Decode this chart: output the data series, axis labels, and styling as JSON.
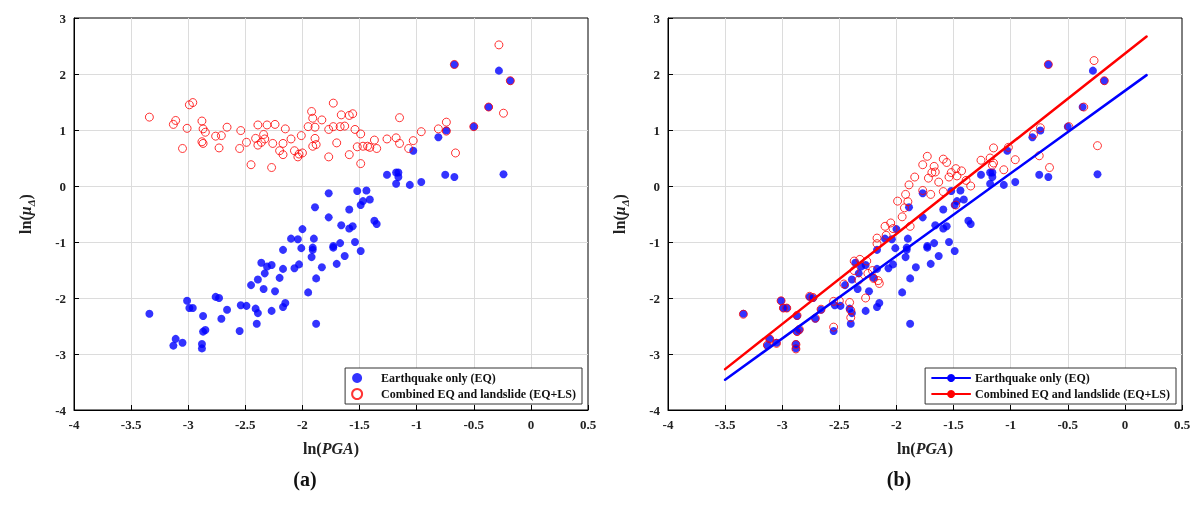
{
  "chart_data": [
    {
      "type": "scatter",
      "title": "(a)",
      "xlabel": "ln(PGA)",
      "ylabel": "ln(μ$_{Δ}$)",
      "xlim": [
        -4,
        0.5
      ],
      "xticks": [
        -4,
        -3.5,
        -3,
        -2.5,
        -2,
        -1.5,
        -1,
        -0.5,
        0,
        0.5
      ],
      "ylim": [
        -4,
        3
      ],
      "yticks": [
        -4,
        -3,
        -2,
        -1,
        0,
        1,
        2,
        3
      ],
      "grid": true,
      "legend": "bottom right",
      "series": [
        {
          "name": "Earthquake only (EQ)",
          "color": "#0000ff",
          "marker": "circle",
          "x": [
            -3.34,
            -3.13,
            -3.11,
            -3.05,
            -3.01,
            -2.99,
            -2.96,
            -2.87,
            -2.87,
            -2.85,
            -2.88,
            -2.88,
            -2.76,
            -2.73,
            -2.71,
            -2.66,
            -2.55,
            -2.54,
            -2.49,
            -2.45,
            -2.41,
            -2.39,
            -2.4,
            -2.39,
            -2.36,
            -2.34,
            -2.33,
            -2.31,
            -2.27,
            -2.27,
            -2.24,
            -2.2,
            -2.17,
            -2.17,
            -2.17,
            -2.15,
            -2.1,
            -2.07,
            -2.04,
            -2.03,
            -2.01,
            -2.0,
            -1.95,
            -1.92,
            -1.91,
            -1.91,
            -1.9,
            -1.89,
            -1.88,
            -1.88,
            -1.83,
            -1.77,
            -1.77,
            -1.73,
            -1.73,
            -1.7,
            -1.67,
            -1.66,
            -1.63,
            -1.59,
            -1.59,
            -1.56,
            -1.54,
            -1.52,
            -1.49,
            -1.49,
            -1.47,
            -1.44,
            -1.41,
            -1.37,
            -1.35,
            -1.26,
            -1.18,
            -1.16,
            -1.16,
            -1.18,
            -1.06,
            -0.96,
            -1.03,
            -0.81,
            -0.74,
            -0.75,
            -0.67,
            -0.67,
            -0.5,
            -0.37,
            -0.28,
            -0.18,
            -0.24
          ],
          "values": [
            -2.28,
            -2.85,
            -2.73,
            -2.8,
            -2.05,
            -2.18,
            -2.18,
            -2.32,
            -2.6,
            -2.57,
            -2.82,
            -2.9,
            -1.98,
            -2.0,
            -2.37,
            -2.21,
            -2.59,
            -2.13,
            -2.14,
            -1.77,
            -2.19,
            -2.27,
            -2.46,
            -1.67,
            -1.37,
            -1.84,
            -1.56,
            -1.44,
            -1.41,
            -2.23,
            -1.88,
            -1.64,
            -1.14,
            -1.48,
            -2.16,
            -2.09,
            -0.94,
            -1.47,
            -0.95,
            -1.4,
            -1.11,
            -0.77,
            -1.9,
            -1.27,
            -1.14,
            -1.1,
            -0.94,
            -0.38,
            -1.65,
            -2.46,
            -1.45,
            -0.13,
            -0.56,
            -1.07,
            -1.1,
            -1.39,
            -1.02,
            -0.7,
            -1.25,
            -0.42,
            -0.76,
            -0.72,
            -1.0,
            -0.09,
            -0.34,
            -1.16,
            -0.27,
            -0.08,
            -0.24,
            -0.62,
            -0.68,
            0.2,
            0.24,
            0.24,
            0.16,
            0.04,
            0.02,
            0.07,
            0.63,
            0.87,
            0.99,
            0.2,
            0.16,
            2.17,
            1.06,
            1.41,
            2.06,
            1.88,
            0.21
          ]
        },
        {
          "name": "Combined EQ and landslide (EQ+LS)",
          "color": "#ff0000",
          "marker": "circle",
          "x": [
            -3.34,
            -3.13,
            -3.11,
            -3.05,
            -3.01,
            -2.99,
            -2.96,
            -2.88,
            -2.87,
            -2.85,
            -2.88,
            -2.87,
            -2.76,
            -2.73,
            -2.71,
            -2.66,
            -2.55,
            -2.54,
            -2.49,
            -2.45,
            -2.39,
            -2.41,
            -2.39,
            -2.36,
            -2.34,
            -2.33,
            -2.31,
            -2.27,
            -2.26,
            -2.24,
            -2.2,
            -2.17,
            -2.17,
            -2.15,
            -2.1,
            -2.07,
            -2.04,
            -2.03,
            -2.01,
            -2.0,
            -1.95,
            -1.92,
            -1.91,
            -1.91,
            -1.89,
            -1.89,
            -1.88,
            -1.83,
            -1.77,
            -1.73,
            -1.77,
            -1.73,
            -1.7,
            -1.66,
            -1.67,
            -1.63,
            -1.59,
            -1.59,
            -1.56,
            -1.54,
            -1.52,
            -1.49,
            -1.49,
            -1.47,
            -1.43,
            -1.41,
            -1.35,
            -1.37,
            -1.26,
            -1.18,
            -1.15,
            -1.15,
            -1.07,
            -1.03,
            -0.96,
            -0.81,
            -0.74,
            -0.74,
            -0.66,
            -0.67,
            -0.5,
            -0.37,
            -0.28,
            -0.24,
            -0.18
          ],
          "values": [
            1.23,
            1.1,
            1.17,
            0.67,
            1.03,
            1.45,
            1.49,
            1.16,
            1.02,
            0.96,
            0.79,
            0.76,
            0.89,
            0.68,
            0.9,
            1.05,
            0.67,
            0.99,
            0.78,
            0.38,
            1.09,
            0.85,
            0.73,
            0.78,
            0.92,
            0.84,
            1.09,
            0.33,
            0.76,
            1.1,
            0.63,
            0.76,
            0.56,
            1.02,
            0.84,
            0.63,
            0.52,
            0.57,
            0.9,
            0.59,
            1.06,
            1.33,
            1.21,
            0.71,
            1.05,
            0.85,
            0.74,
            1.18,
            0.52,
            1.48,
            1.01,
            1.06,
            0.77,
            1.27,
            1.06,
            1.07,
            1.26,
            0.56,
            1.29,
            1.01,
            0.7,
            0.93,
            0.4,
            0.71,
            0.71,
            0.69,
            0.67,
            0.82,
            0.84,
            0.86,
            1.22,
            0.76,
            0.67,
            0.81,
            0.97,
            1.02,
            1.14,
            0.98,
            0.59,
            2.17,
            1.06,
            1.41,
            2.52,
            1.3,
            1.88
          ]
        }
      ]
    },
    {
      "type": "scatter",
      "title": "(b)",
      "xlabel": "ln(PGA)",
      "ylabel": "ln(μ$_{Δ}$)",
      "xlim": [
        -4,
        0.5
      ],
      "xticks": [
        -4,
        -3.5,
        -3,
        -2.5,
        -2,
        -1.5,
        -1,
        -0.5,
        0,
        0.5
      ],
      "ylim": [
        -4,
        3
      ],
      "yticks": [
        -4,
        -3,
        -2,
        -1,
        0,
        1,
        2,
        3
      ],
      "grid": true,
      "legend": "bottom right",
      "series": [
        {
          "color": "#0000ff",
          "marker": "circle",
          "x": [
            -3.34,
            -3.13,
            -3.11,
            -3.05,
            -3.01,
            -2.99,
            -2.96,
            -2.87,
            -2.87,
            -2.85,
            -2.88,
            -2.88,
            -2.76,
            -2.73,
            -2.71,
            -2.66,
            -2.55,
            -2.54,
            -2.49,
            -2.45,
            -2.41,
            -2.39,
            -2.4,
            -2.39,
            -2.36,
            -2.34,
            -2.33,
            -2.31,
            -2.27,
            -2.27,
            -2.24,
            -2.2,
            -2.17,
            -2.17,
            -2.17,
            -2.15,
            -2.1,
            -2.07,
            -2.04,
            -2.03,
            -2.01,
            -2.0,
            -1.95,
            -1.92,
            -1.91,
            -1.91,
            -1.9,
            -1.89,
            -1.88,
            -1.88,
            -1.83,
            -1.77,
            -1.77,
            -1.73,
            -1.73,
            -1.7,
            -1.67,
            -1.66,
            -1.63,
            -1.59,
            -1.59,
            -1.56,
            -1.54,
            -1.52,
            -1.49,
            -1.49,
            -1.47,
            -1.44,
            -1.41,
            -1.37,
            -1.35,
            -1.26,
            -1.18,
            -1.16,
            -1.16,
            -1.18,
            -1.06,
            -0.96,
            -1.03,
            -0.81,
            -0.74,
            -0.75,
            -0.67,
            -0.67,
            -0.5,
            -0.37,
            -0.28,
            -0.18,
            -0.24
          ],
          "values": [
            -2.28,
            -2.85,
            -2.73,
            -2.8,
            -2.05,
            -2.18,
            -2.18,
            -2.32,
            -2.6,
            -2.57,
            -2.82,
            -2.9,
            -1.98,
            -2.0,
            -2.37,
            -2.21,
            -2.59,
            -2.13,
            -2.14,
            -1.77,
            -2.19,
            -2.27,
            -2.46,
            -1.67,
            -1.37,
            -1.84,
            -1.56,
            -1.44,
            -1.41,
            -2.23,
            -1.88,
            -1.64,
            -1.14,
            -1.48,
            -2.16,
            -2.09,
            -0.94,
            -1.47,
            -0.95,
            -1.4,
            -1.11,
            -0.77,
            -1.9,
            -1.27,
            -1.14,
            -1.1,
            -0.94,
            -0.38,
            -1.65,
            -2.46,
            -1.45,
            -0.13,
            -0.56,
            -1.07,
            -1.1,
            -1.39,
            -1.02,
            -0.7,
            -1.25,
            -0.42,
            -0.76,
            -0.72,
            -1.0,
            -0.09,
            -0.34,
            -1.16,
            -0.27,
            -0.08,
            -0.24,
            -0.62,
            -0.68,
            0.2,
            0.24,
            0.24,
            0.16,
            0.04,
            0.02,
            0.07,
            0.63,
            0.87,
            0.99,
            0.2,
            0.16,
            2.17,
            1.06,
            1.41,
            2.06,
            1.88,
            0.21
          ]
        },
        {
          "color": "#ff0000",
          "marker": "circle",
          "x": [
            -3.34,
            -3.13,
            -3.11,
            -3.05,
            -3.01,
            -2.99,
            -2.96,
            -2.87,
            -2.87,
            -2.85,
            -2.88,
            -2.88,
            -2.76,
            -2.73,
            -2.71,
            -2.66,
            -2.55,
            -2.55,
            -2.5,
            -2.46,
            -2.41,
            -2.4,
            -2.4,
            -2.37,
            -2.37,
            -2.33,
            -2.32,
            -2.26,
            -2.27,
            -2.25,
            -2.21,
            -2.2,
            -2.17,
            -2.17,
            -2.16,
            -2.15,
            -2.1,
            -2.09,
            -2.05,
            -2.03,
            -1.99,
            -1.95,
            -1.93,
            -1.92,
            -1.9,
            -1.89,
            -1.88,
            -1.84,
            -1.77,
            -1.77,
            -1.73,
            -1.72,
            -1.7,
            -1.69,
            -1.67,
            -1.66,
            -1.63,
            -1.59,
            -1.56,
            -1.59,
            -1.54,
            -1.52,
            -1.48,
            -1.47,
            -1.43,
            -1.48,
            -1.39,
            -1.35,
            -1.26,
            -1.18,
            -1.15,
            -1.15,
            -1.16,
            -1.06,
            -1.02,
            -0.96,
            -0.8,
            -0.74,
            -0.75,
            -0.66,
            -0.67,
            -0.49,
            -0.36,
            -0.27,
            -0.24,
            -0.18
          ],
          "values": [
            -2.29,
            -2.84,
            -2.73,
            -2.81,
            -2.05,
            -2.18,
            -2.18,
            -2.31,
            -2.6,
            -2.56,
            -2.83,
            -2.91,
            -1.97,
            -1.99,
            -2.36,
            -2.2,
            -2.52,
            -2.06,
            -2.05,
            -1.75,
            -2.08,
            -2.22,
            -2.35,
            -1.51,
            -1.34,
            -1.68,
            -1.31,
            -1.34,
            -2.0,
            -1.56,
            -1.51,
            -1.65,
            -0.93,
            -1.03,
            -1.69,
            -1.74,
            -0.72,
            -0.88,
            -0.66,
            -0.76,
            -0.27,
            -0.55,
            -0.39,
            -0.15,
            -0.28,
            0.02,
            -0.72,
            0.16,
            0.38,
            -0.08,
            0.53,
            0.14,
            -0.15,
            0.24,
            0.35,
            0.25,
            0.07,
            0.48,
            0.42,
            -0.1,
            0.16,
            0.24,
            0.31,
            0.18,
            0.27,
            -0.34,
            0.1,
            0.0,
            0.46,
            0.5,
            0.68,
            0.41,
            0.37,
            0.29,
            0.69,
            0.47,
            0.92,
            1.04,
            0.54,
            0.33,
            2.17,
            1.06,
            1.41,
            2.24,
            0.72,
            1.88
          ]
        },
        {
          "type": "line",
          "name": "Earthquake only (EQ)",
          "color": "#0000ff",
          "line_style": "solid",
          "x": [
            -3.5,
            0.19
          ],
          "values": [
            -3.46,
            1.98
          ]
        },
        {
          "type": "line",
          "name": "Combined EQ and landslide (EQ+LS)",
          "color": "#ff0000",
          "line_style": "solid",
          "x": [
            -3.5,
            0.19
          ],
          "values": [
            -3.27,
            2.67
          ]
        }
      ]
    }
  ]
}
